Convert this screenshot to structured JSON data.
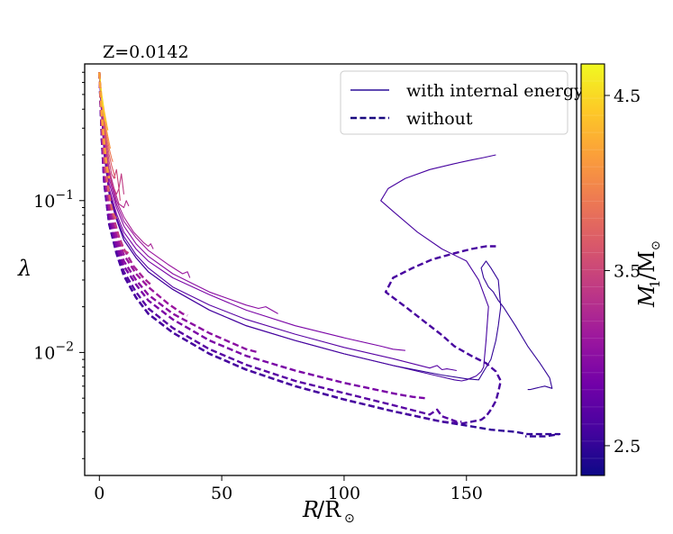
{
  "chart_data": {
    "type": "line",
    "title": "Z=0.0142",
    "xlabel": "R/R⊙",
    "ylabel": "λ",
    "xlim": [
      -6,
      195
    ],
    "ylim_log10": [
      -2.81,
      -0.1
    ],
    "yscale": "log",
    "xticks": [
      0,
      50,
      100,
      150
    ],
    "yticks_major": [
      {
        "exp": -1,
        "base": "10",
        "sup": "−1"
      },
      {
        "exp": -2,
        "base": "10",
        "sup": "−2"
      }
    ],
    "legend": {
      "position": "top-right",
      "entries": [
        {
          "label": "with internal energy",
          "style": "solid"
        },
        {
          "label": "without",
          "style": "dashed"
        }
      ]
    },
    "colorbar": {
      "label": "M₁/M⊙",
      "range": [
        2.33,
        4.68
      ],
      "ticks": [
        {
          "value": 2.5,
          "label": "2.5"
        },
        {
          "value": 3.5,
          "label": "3.5"
        },
        {
          "value": 4.5,
          "label": "4.5"
        }
      ],
      "colors": [
        "#0d0887",
        "#46039f",
        "#7201a8",
        "#9c179e",
        "#bd3786",
        "#d8576b",
        "#ed7953",
        "#fb9f3a",
        "#fdca26",
        "#f0f921"
      ]
    },
    "series": [
      {
        "mass": 2.5,
        "style": "solid",
        "x": [
          0,
          1,
          2,
          4,
          7,
          10,
          15,
          20,
          30,
          45,
          60,
          80,
          100,
          120,
          140,
          150,
          155,
          157,
          160,
          162,
          163,
          164,
          163,
          160,
          158,
          156,
          157,
          159,
          161,
          163,
          165,
          170,
          175,
          180,
          184,
          185,
          182,
          180,
          178,
          176,
          175
        ],
        "y": [
          0.7,
          0.35,
          0.2,
          0.11,
          0.075,
          0.055,
          0.042,
          0.034,
          0.026,
          0.019,
          0.015,
          0.012,
          0.0098,
          0.0082,
          0.0071,
          0.0067,
          0.0066,
          0.0075,
          0.009,
          0.012,
          0.015,
          0.02,
          0.03,
          0.036,
          0.04,
          0.036,
          0.031,
          0.027,
          0.025,
          0.022,
          0.02,
          0.015,
          0.011,
          0.0085,
          0.0068,
          0.0058,
          0.006,
          0.0059,
          0.0058,
          0.0057,
          0.0057
        ]
      },
      {
        "mass": 2.6,
        "style": "solid",
        "x": [
          0,
          1,
          2,
          4,
          7,
          10,
          15,
          20,
          30,
          45,
          60,
          80,
          100,
          120,
          140,
          145,
          148,
          150,
          152,
          154,
          156,
          157,
          158,
          159,
          155,
          150,
          140,
          130,
          120,
          115,
          118,
          125,
          135,
          145,
          152,
          157,
          162
        ],
        "y": [
          0.7,
          0.35,
          0.2,
          0.11,
          0.075,
          0.055,
          0.042,
          0.034,
          0.026,
          0.019,
          0.015,
          0.012,
          0.0098,
          0.0082,
          0.0069,
          0.0066,
          0.0065,
          0.0066,
          0.0068,
          0.007,
          0.0075,
          0.008,
          0.012,
          0.02,
          0.03,
          0.04,
          0.048,
          0.062,
          0.085,
          0.1,
          0.12,
          0.14,
          0.16,
          0.175,
          0.185,
          0.192,
          0.2
        ]
      },
      {
        "mass": 2.7,
        "style": "solid",
        "x": [
          0,
          1,
          2,
          4,
          7,
          10,
          15,
          20,
          30,
          45,
          60,
          80,
          100,
          120,
          135,
          138,
          140,
          142,
          144,
          146
        ],
        "y": [
          0.7,
          0.36,
          0.21,
          0.115,
          0.078,
          0.058,
          0.044,
          0.036,
          0.027,
          0.0205,
          0.0165,
          0.0132,
          0.0108,
          0.0091,
          0.0079,
          0.0082,
          0.0077,
          0.0078,
          0.0077,
          0.0076
        ]
      },
      {
        "mass": 2.9,
        "style": "solid",
        "x": [
          0,
          1,
          2,
          4,
          7,
          10,
          15,
          20,
          30,
          45,
          60,
          80,
          100,
          115,
          120,
          125
        ],
        "y": [
          0.7,
          0.38,
          0.22,
          0.12,
          0.082,
          0.062,
          0.048,
          0.04,
          0.031,
          0.024,
          0.019,
          0.015,
          0.0125,
          0.011,
          0.0105,
          0.0103
        ]
      },
      {
        "mass": 3.0,
        "style": "solid",
        "x": [
          0,
          1,
          2,
          4,
          7,
          10,
          15,
          20,
          30,
          45,
          60,
          65,
          68,
          73
        ],
        "y": [
          0.7,
          0.38,
          0.23,
          0.13,
          0.09,
          0.068,
          0.052,
          0.043,
          0.033,
          0.025,
          0.0205,
          0.0195,
          0.02,
          0.018
        ]
      },
      {
        "mass": 3.1,
        "style": "solid",
        "x": [
          0,
          1,
          2,
          4,
          7,
          10,
          15,
          20,
          28,
          34,
          36,
          37
        ],
        "y": [
          0.7,
          0.4,
          0.24,
          0.14,
          0.095,
          0.073,
          0.057,
          0.047,
          0.038,
          0.033,
          0.034,
          0.031
        ]
      },
      {
        "mass": 3.2,
        "style": "solid",
        "x": [
          0,
          1,
          2,
          4,
          7,
          10,
          14,
          18,
          20,
          21,
          22
        ],
        "y": [
          0.7,
          0.4,
          0.25,
          0.15,
          0.1,
          0.078,
          0.062,
          0.053,
          0.05,
          0.052,
          0.048
        ]
      },
      {
        "mass": 3.3,
        "style": "solid",
        "x": [
          0,
          1,
          2,
          4,
          6,
          8,
          10,
          11,
          12
        ],
        "y": [
          0.7,
          0.42,
          0.27,
          0.16,
          0.12,
          0.095,
          0.09,
          0.1,
          0.092
        ]
      },
      {
        "mass": 3.4,
        "style": "solid",
        "x": [
          0,
          1,
          2,
          3,
          4,
          5,
          6,
          7,
          8,
          9,
          10
        ],
        "y": [
          0.7,
          0.44,
          0.29,
          0.2,
          0.16,
          0.13,
          0.12,
          0.11,
          0.12,
          0.15,
          0.11
        ]
      },
      {
        "mass": 3.5,
        "style": "solid",
        "x": [
          0,
          1,
          2,
          3,
          4,
          5,
          6,
          7,
          8,
          8.5
        ],
        "y": [
          0.7,
          0.45,
          0.31,
          0.23,
          0.18,
          0.15,
          0.14,
          0.16,
          0.12,
          0.1
        ]
      },
      {
        "mass": 3.7,
        "style": "solid",
        "x": [
          0,
          1,
          2,
          3,
          4,
          5,
          6,
          6.5
        ],
        "y": [
          0.7,
          0.46,
          0.33,
          0.25,
          0.2,
          0.17,
          0.15,
          0.14
        ]
      },
      {
        "mass": 3.9,
        "style": "solid",
        "x": [
          0,
          1,
          2,
          3,
          4,
          5,
          5.5
        ],
        "y": [
          0.7,
          0.47,
          0.35,
          0.27,
          0.22,
          0.19,
          0.18
        ]
      },
      {
        "mass": 4.1,
        "style": "solid",
        "x": [
          0,
          1,
          2,
          3,
          4,
          4.5
        ],
        "y": [
          0.7,
          0.48,
          0.37,
          0.29,
          0.24,
          0.22
        ]
      },
      {
        "mass": 4.3,
        "style": "solid",
        "x": [
          0,
          1,
          2,
          3,
          3.5
        ],
        "y": [
          0.7,
          0.5,
          0.39,
          0.32,
          0.29
        ]
      },
      {
        "mass": 4.5,
        "style": "solid",
        "x": [
          0,
          0.5,
          1,
          2,
          2.5
        ],
        "y": [
          0.7,
          0.55,
          0.45,
          0.36,
          0.33
        ]
      },
      {
        "mass": 4.65,
        "style": "solid",
        "x": [
          0,
          0.5,
          1,
          1.5
        ],
        "y": [
          0.7,
          0.57,
          0.48,
          0.42
        ]
      },
      {
        "mass": 2.5,
        "style": "dashed",
        "x": [
          0,
          1,
          2,
          4,
          7,
          10,
          15,
          20,
          30,
          45,
          60,
          80,
          100,
          120,
          140,
          150,
          160,
          170,
          175,
          180,
          185,
          188,
          182,
          178,
          176,
          174
        ],
        "y": [
          0.7,
          0.25,
          0.13,
          0.07,
          0.045,
          0.032,
          0.023,
          0.018,
          0.0135,
          0.0098,
          0.0077,
          0.006,
          0.0049,
          0.0041,
          0.0035,
          0.0033,
          0.0031,
          0.003,
          0.0029,
          0.0029,
          0.0029,
          0.0029,
          0.0028,
          0.0028,
          0.0028,
          0.0028
        ]
      },
      {
        "mass": 2.6,
        "style": "dashed",
        "x": [
          0,
          1,
          2,
          4,
          7,
          10,
          15,
          20,
          30,
          45,
          60,
          80,
          100,
          120,
          140,
          148,
          152,
          156,
          158,
          160,
          162,
          163,
          164,
          162,
          158,
          152,
          145,
          140,
          135,
          125,
          117,
          120,
          128,
          136,
          145,
          152,
          158,
          162
        ],
        "y": [
          0.7,
          0.25,
          0.13,
          0.07,
          0.045,
          0.032,
          0.023,
          0.018,
          0.0135,
          0.0098,
          0.0077,
          0.006,
          0.0049,
          0.0041,
          0.0035,
          0.0034,
          0.0035,
          0.0036,
          0.0038,
          0.0042,
          0.0048,
          0.0055,
          0.0065,
          0.0075,
          0.0085,
          0.0095,
          0.011,
          0.013,
          0.015,
          0.02,
          0.025,
          0.031,
          0.036,
          0.041,
          0.045,
          0.048,
          0.05,
          0.05
        ]
      },
      {
        "mass": 2.7,
        "style": "dashed",
        "x": [
          0,
          1,
          2,
          4,
          7,
          10,
          15,
          20,
          30,
          45,
          60,
          80,
          100,
          120,
          135,
          138,
          140,
          142,
          144,
          146,
          148
        ],
        "y": [
          0.7,
          0.26,
          0.135,
          0.073,
          0.047,
          0.034,
          0.025,
          0.0195,
          0.0145,
          0.0105,
          0.0083,
          0.0065,
          0.0054,
          0.0045,
          0.0039,
          0.0042,
          0.0038,
          0.0037,
          0.0036,
          0.0035,
          0.0035
        ]
      },
      {
        "mass": 2.9,
        "style": "dashed",
        "x": [
          0,
          1,
          2,
          4,
          7,
          10,
          15,
          20,
          30,
          45,
          60,
          80,
          100,
          115,
          122,
          128,
          133
        ],
        "y": [
          0.7,
          0.27,
          0.14,
          0.077,
          0.05,
          0.037,
          0.028,
          0.022,
          0.0165,
          0.012,
          0.0095,
          0.0076,
          0.0063,
          0.0056,
          0.0053,
          0.0051,
          0.005
        ]
      },
      {
        "mass": 3.0,
        "style": "dashed",
        "x": [
          0,
          1,
          2,
          4,
          7,
          10,
          15,
          20,
          30,
          45,
          60,
          65
        ],
        "y": [
          0.7,
          0.28,
          0.15,
          0.082,
          0.054,
          0.04,
          0.03,
          0.024,
          0.018,
          0.0134,
          0.0105,
          0.01
        ]
      },
      {
        "mass": 3.1,
        "style": "dashed",
        "x": [
          0,
          1,
          2,
          4,
          7,
          10,
          15,
          20,
          28,
          34,
          36
        ],
        "y": [
          0.7,
          0.29,
          0.16,
          0.088,
          0.058,
          0.044,
          0.033,
          0.027,
          0.021,
          0.018,
          0.0175
        ]
      },
      {
        "mass": 3.2,
        "style": "dashed",
        "x": [
          0,
          1,
          2,
          4,
          7,
          10,
          14,
          18,
          21
        ],
        "y": [
          0.7,
          0.3,
          0.17,
          0.095,
          0.063,
          0.048,
          0.037,
          0.031,
          0.028
        ]
      },
      {
        "mass": 3.4,
        "style": "dashed",
        "x": [
          0,
          1,
          2,
          4,
          6,
          8,
          10,
          12
        ],
        "y": [
          0.7,
          0.32,
          0.19,
          0.105,
          0.075,
          0.058,
          0.047,
          0.045
        ]
      },
      {
        "mass": 3.7,
        "style": "dashed",
        "x": [
          0,
          1,
          2,
          3,
          4,
          5,
          6,
          7
        ],
        "y": [
          0.7,
          0.34,
          0.21,
          0.14,
          0.11,
          0.09,
          0.08,
          0.075
        ]
      },
      {
        "mass": 4.2,
        "style": "dashed",
        "x": [
          0,
          1,
          2,
          3,
          4
        ],
        "y": [
          0.7,
          0.37,
          0.24,
          0.17,
          0.14
        ]
      }
    ]
  }
}
